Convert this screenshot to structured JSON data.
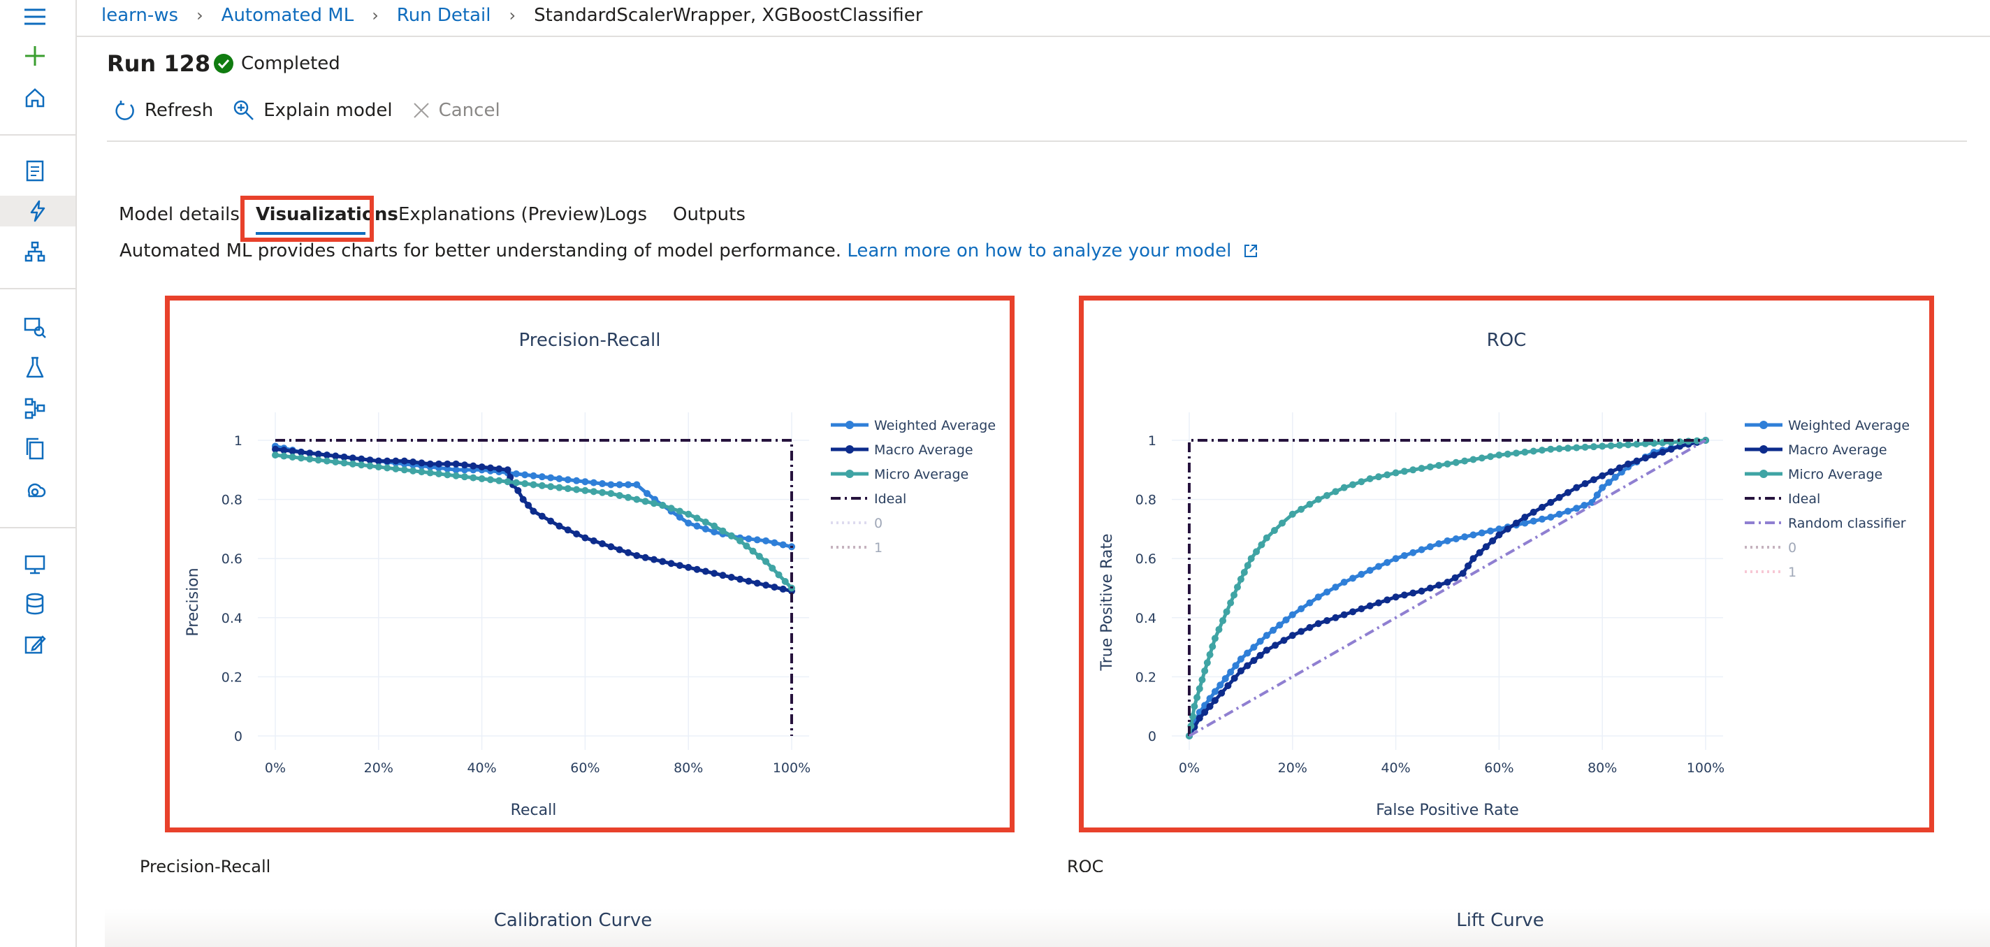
{
  "breadcrumb": {
    "items": [
      "learn-ws",
      "Automated ML",
      "Run Detail"
    ],
    "current": "StandardScalerWrapper, XGBoostClassifier"
  },
  "run": {
    "title": "Run 128",
    "status": "Completed",
    "status_color": "#107c10"
  },
  "toolbar": {
    "refresh": "Refresh",
    "explain": "Explain model",
    "cancel": "Cancel"
  },
  "tabs": [
    "Model details",
    "Visualizations",
    "Explanations (Preview)",
    "Logs",
    "Outputs"
  ],
  "selected_tab": "Visualizations",
  "description": {
    "text": "Automated ML provides charts for better understanding of model performance.",
    "link": "Learn more on how to analyze your model"
  },
  "sidebar": {
    "icons": [
      "menu-icon",
      "new-icon",
      "home-icon",
      "notebooks-icon",
      "automated-ml-icon",
      "designer-icon",
      "datasets-icon",
      "experiments-icon",
      "pipelines-icon",
      "models-icon",
      "endpoints-icon",
      "compute-icon",
      "datastores-icon",
      "labeling-icon"
    ],
    "active": "automated-ml-icon"
  },
  "below_labels": {
    "left": "Precision-Recall",
    "right": "ROC"
  },
  "bottom_titles": {
    "left": "Calibration Curve",
    "right": "Lift Curve"
  },
  "colors": {
    "highlight": "#e8412b",
    "link": "#0f6cbd"
  },
  "chart_data": [
    {
      "type": "line",
      "title": "Precision-Recall",
      "xlabel": "Recall",
      "ylabel": "Precision",
      "xlim": [
        0,
        1
      ],
      "ylim": [
        0,
        1
      ],
      "x_ticks": [
        "0%",
        "20%",
        "40%",
        "60%",
        "80%",
        "100%"
      ],
      "y_ticks": [
        "0",
        "0.2",
        "0.4",
        "0.6",
        "0.8",
        "1"
      ],
      "grid": true,
      "legend_position": "right",
      "series": [
        {
          "name": "Weighted Average",
          "color": "#2f7fd8",
          "style": "markers+line",
          "x": [
            0,
            0.05,
            0.1,
            0.15,
            0.2,
            0.25,
            0.3,
            0.35,
            0.4,
            0.45,
            0.5,
            0.55,
            0.6,
            0.65,
            0.7,
            0.72,
            0.75,
            0.8,
            0.85,
            0.9,
            0.95,
            1.0
          ],
          "y": [
            0.98,
            0.96,
            0.95,
            0.94,
            0.93,
            0.92,
            0.91,
            0.9,
            0.9,
            0.89,
            0.88,
            0.87,
            0.86,
            0.85,
            0.85,
            0.82,
            0.78,
            0.72,
            0.69,
            0.67,
            0.66,
            0.64
          ]
        },
        {
          "name": "Macro Average",
          "color": "#0d2c8c",
          "style": "markers+line",
          "x": [
            0,
            0.05,
            0.1,
            0.15,
            0.2,
            0.25,
            0.3,
            0.35,
            0.4,
            0.45,
            0.46,
            0.47,
            0.48,
            0.5,
            0.55,
            0.6,
            0.65,
            0.7,
            0.75,
            0.8,
            0.85,
            0.9,
            0.95,
            1.0
          ],
          "y": [
            0.97,
            0.96,
            0.95,
            0.94,
            0.93,
            0.93,
            0.92,
            0.92,
            0.91,
            0.9,
            0.85,
            0.83,
            0.8,
            0.76,
            0.71,
            0.67,
            0.64,
            0.61,
            0.59,
            0.57,
            0.55,
            0.53,
            0.51,
            0.49
          ]
        },
        {
          "name": "Micro Average",
          "color": "#3fa4a4",
          "style": "markers+line",
          "x": [
            0,
            0.05,
            0.1,
            0.15,
            0.2,
            0.25,
            0.3,
            0.35,
            0.4,
            0.45,
            0.5,
            0.55,
            0.6,
            0.65,
            0.7,
            0.75,
            0.8,
            0.85,
            0.9,
            0.95,
            1.0
          ],
          "y": [
            0.95,
            0.94,
            0.93,
            0.92,
            0.91,
            0.9,
            0.89,
            0.88,
            0.87,
            0.86,
            0.85,
            0.84,
            0.83,
            0.82,
            0.8,
            0.78,
            0.75,
            0.71,
            0.66,
            0.59,
            0.5
          ]
        },
        {
          "name": "Ideal",
          "color": "#26123d",
          "style": "dashdot",
          "x": [
            0,
            1,
            1
          ],
          "y": [
            1,
            1,
            0
          ]
        },
        {
          "name": "0",
          "color": "#c9c4e6",
          "style": "dot",
          "legend_only": true,
          "faded": true
        },
        {
          "name": "1",
          "color": "#a07f94",
          "style": "dot",
          "legend_only": true,
          "faded": true
        }
      ]
    },
    {
      "type": "line",
      "title": "ROC",
      "xlabel": "False Positive Rate",
      "ylabel": "True Positive Rate",
      "xlim": [
        0,
        1
      ],
      "ylim": [
        0,
        1
      ],
      "x_ticks": [
        "0%",
        "20%",
        "40%",
        "60%",
        "80%",
        "100%"
      ],
      "y_ticks": [
        "0",
        "0.2",
        "0.4",
        "0.6",
        "0.8",
        "1"
      ],
      "grid": true,
      "legend_position": "right",
      "series": [
        {
          "name": "Weighted Average",
          "color": "#2f7fd8",
          "style": "markers+line",
          "x": [
            0,
            0.02,
            0.05,
            0.1,
            0.15,
            0.2,
            0.25,
            0.3,
            0.35,
            0.4,
            0.45,
            0.5,
            0.55,
            0.6,
            0.65,
            0.7,
            0.75,
            0.78,
            0.8,
            0.85,
            0.9,
            0.95,
            1.0
          ],
          "y": [
            0,
            0.08,
            0.15,
            0.26,
            0.34,
            0.41,
            0.47,
            0.52,
            0.56,
            0.6,
            0.63,
            0.66,
            0.68,
            0.7,
            0.72,
            0.74,
            0.77,
            0.79,
            0.84,
            0.91,
            0.96,
            0.98,
            1.0
          ]
        },
        {
          "name": "Macro Average",
          "color": "#0d2c8c",
          "style": "markers+line",
          "x": [
            0,
            0.02,
            0.05,
            0.1,
            0.15,
            0.2,
            0.25,
            0.3,
            0.35,
            0.4,
            0.45,
            0.5,
            0.53,
            0.55,
            0.6,
            0.65,
            0.7,
            0.75,
            0.8,
            0.85,
            0.9,
            0.95,
            1.0
          ],
          "y": [
            0,
            0.06,
            0.12,
            0.22,
            0.29,
            0.34,
            0.38,
            0.41,
            0.44,
            0.47,
            0.49,
            0.52,
            0.55,
            0.6,
            0.68,
            0.74,
            0.79,
            0.84,
            0.88,
            0.92,
            0.95,
            0.98,
            1.0
          ]
        },
        {
          "name": "Micro Average",
          "color": "#3fa4a4",
          "style": "markers+line",
          "x": [
            0,
            0.01,
            0.03,
            0.05,
            0.08,
            0.1,
            0.12,
            0.15,
            0.18,
            0.2,
            0.25,
            0.3,
            0.35,
            0.4,
            0.5,
            0.6,
            0.7,
            0.8,
            0.9,
            1.0
          ],
          "y": [
            0,
            0.1,
            0.22,
            0.33,
            0.45,
            0.53,
            0.6,
            0.67,
            0.72,
            0.75,
            0.8,
            0.84,
            0.87,
            0.89,
            0.92,
            0.95,
            0.97,
            0.98,
            0.99,
            1.0
          ]
        },
        {
          "name": "Ideal",
          "color": "#26123d",
          "style": "dashdot",
          "x": [
            0,
            0,
            1
          ],
          "y": [
            0,
            1,
            1
          ]
        },
        {
          "name": "Random classifier",
          "color": "#8f7fd1",
          "style": "dashdot",
          "x": [
            0,
            1
          ],
          "y": [
            0,
            1
          ]
        },
        {
          "name": "0",
          "color": "#a07f94",
          "style": "dot",
          "legend_only": true,
          "faded": true
        },
        {
          "name": "1",
          "color": "#f2a3b8",
          "style": "dot",
          "legend_only": true,
          "faded": true
        }
      ]
    }
  ]
}
